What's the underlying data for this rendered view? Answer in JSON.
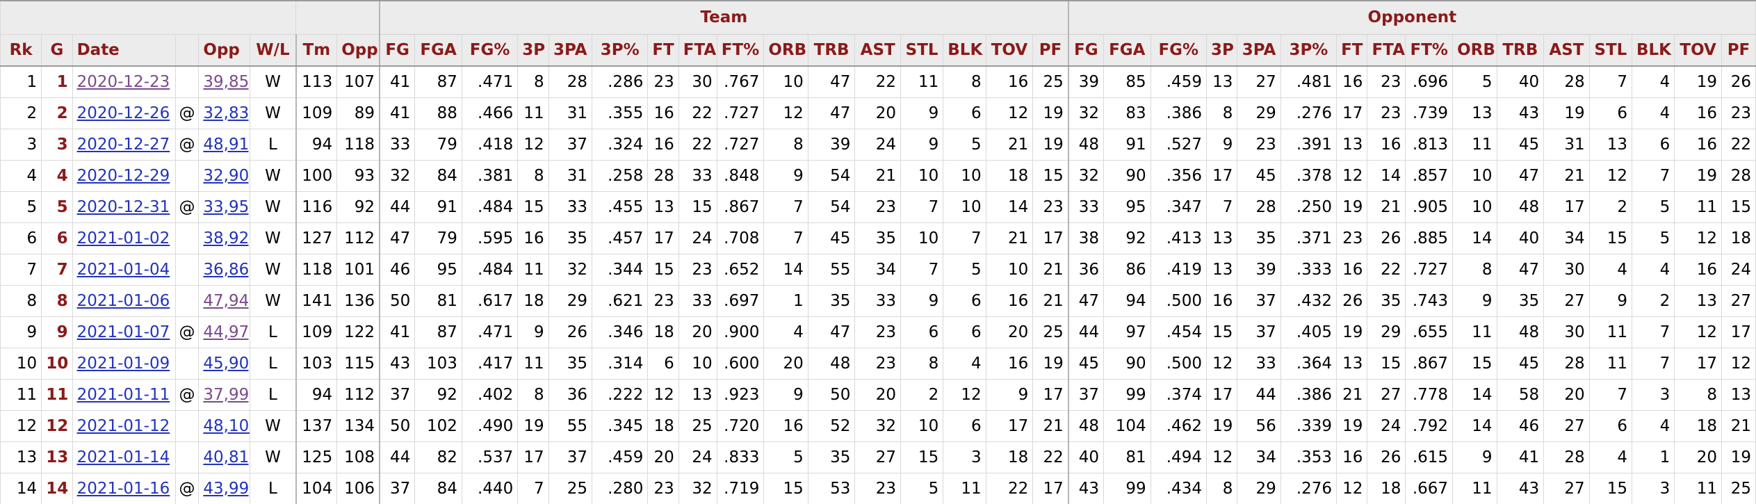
{
  "overheader": {
    "team": "Team",
    "opponent": "Opponent"
  },
  "columns": {
    "rk": "Rk",
    "g": "G",
    "date": "Date",
    "site": "",
    "opp": "Opp",
    "wl": "W/L",
    "tm": "Tm",
    "opp_pts": "Opp",
    "team_stats": [
      "FG",
      "FGA",
      "FG%",
      "3P",
      "3PA",
      "3P%",
      "FT",
      "FTA",
      "FT%",
      "ORB",
      "TRB",
      "AST",
      "STL",
      "BLK",
      "TOV",
      "PF"
    ],
    "opp_stats": [
      "FG",
      "FGA",
      "FG%",
      "3P",
      "3PA",
      "3P%",
      "FT",
      "FTA",
      "FT%",
      "ORB",
      "TRB",
      "AST",
      "STL",
      "BLK",
      "TOV",
      "PF"
    ]
  },
  "colors": {
    "header_text": "#8b1a1a",
    "link": "#2233bb",
    "link_visited": "#7a4a8c",
    "header_bg": "#ececec"
  },
  "rows": [
    {
      "rk": "1",
      "g": "1",
      "date": "2020-12-23",
      "date_visited": true,
      "site": "",
      "opp": [
        "39",
        "85",
        ".459",
        "13",
        "27",
        ".481",
        "16",
        "23",
        ".696",
        "5",
        "40",
        "28",
        "7",
        "4",
        "19",
        "26"
      ],
      "opp_visited": true,
      "wl": "W",
      "tm": "113",
      "opp_pts": "107",
      "team": [
        "41",
        "87",
        ".471",
        "8",
        "28",
        ".286",
        "23",
        "30",
        ".767",
        "10",
        "47",
        "22",
        "11",
        "8",
        "16",
        "25"
      ]
    },
    {
      "rk": "2",
      "g": "2",
      "date": "2020-12-26",
      "date_visited": false,
      "site": "@",
      "opp": [
        "32",
        "83",
        ".386",
        "8",
        "29",
        ".276",
        "17",
        "23",
        ".739",
        "13",
        "43",
        "19",
        "6",
        "4",
        "16",
        "23"
      ],
      "opp_visited": false,
      "wl": "W",
      "tm": "109",
      "opp_pts": "89",
      "team": [
        "41",
        "88",
        ".466",
        "11",
        "31",
        ".355",
        "16",
        "22",
        ".727",
        "12",
        "47",
        "20",
        "9",
        "6",
        "12",
        "19"
      ]
    },
    {
      "rk": "3",
      "g": "3",
      "date": "2020-12-27",
      "date_visited": false,
      "site": "@",
      "opp": [
        "48",
        "91",
        ".527",
        "9",
        "23",
        ".391",
        "13",
        "16",
        ".813",
        "11",
        "45",
        "31",
        "13",
        "6",
        "16",
        "22"
      ],
      "opp_visited": false,
      "wl": "L",
      "tm": "94",
      "opp_pts": "118",
      "team": [
        "33",
        "79",
        ".418",
        "12",
        "37",
        ".324",
        "16",
        "22",
        ".727",
        "8",
        "39",
        "24",
        "9",
        "5",
        "21",
        "19"
      ]
    },
    {
      "rk": "4",
      "g": "4",
      "date": "2020-12-29",
      "date_visited": false,
      "site": "",
      "opp": [
        "32",
        "90",
        ".356",
        "17",
        "45",
        ".378",
        "12",
        "14",
        ".857",
        "10",
        "47",
        "21",
        "12",
        "7",
        "19",
        "28"
      ],
      "opp_visited": false,
      "wl": "W",
      "tm": "100",
      "opp_pts": "93",
      "team": [
        "32",
        "84",
        ".381",
        "8",
        "31",
        ".258",
        "28",
        "33",
        ".848",
        "9",
        "54",
        "21",
        "10",
        "10",
        "18",
        "15"
      ]
    },
    {
      "rk": "5",
      "g": "5",
      "date": "2020-12-31",
      "date_visited": false,
      "site": "@",
      "opp": [
        "33",
        "95",
        ".347",
        "7",
        "28",
        ".250",
        "19",
        "21",
        ".905",
        "10",
        "48",
        "17",
        "2",
        "5",
        "11",
        "15"
      ],
      "opp_visited": false,
      "wl": "W",
      "tm": "116",
      "opp_pts": "92",
      "team": [
        "44",
        "91",
        ".484",
        "15",
        "33",
        ".455",
        "13",
        "15",
        ".867",
        "7",
        "54",
        "23",
        "7",
        "10",
        "14",
        "23"
      ]
    },
    {
      "rk": "6",
      "g": "6",
      "date": "2021-01-02",
      "date_visited": false,
      "site": "",
      "opp": [
        "38",
        "92",
        ".413",
        "13",
        "35",
        ".371",
        "23",
        "26",
        ".885",
        "14",
        "40",
        "34",
        "15",
        "5",
        "12",
        "18"
      ],
      "opp_visited": false,
      "wl": "W",
      "tm": "127",
      "opp_pts": "112",
      "team": [
        "47",
        "79",
        ".595",
        "16",
        "35",
        ".457",
        "17",
        "24",
        ".708",
        "7",
        "45",
        "35",
        "10",
        "7",
        "21",
        "17"
      ]
    },
    {
      "rk": "7",
      "g": "7",
      "date": "2021-01-04",
      "date_visited": false,
      "site": "",
      "opp": [
        "36",
        "86",
        ".419",
        "13",
        "39",
        ".333",
        "16",
        "22",
        ".727",
        "8",
        "47",
        "30",
        "4",
        "4",
        "16",
        "24"
      ],
      "opp_visited": false,
      "wl": "W",
      "tm": "118",
      "opp_pts": "101",
      "team": [
        "46",
        "95",
        ".484",
        "11",
        "32",
        ".344",
        "15",
        "23",
        ".652",
        "14",
        "55",
        "34",
        "7",
        "5",
        "10",
        "21"
      ]
    },
    {
      "rk": "8",
      "g": "8",
      "date": "2021-01-06",
      "date_visited": false,
      "site": "",
      "opp": [
        "47",
        "94",
        ".500",
        "16",
        "37",
        ".432",
        "26",
        "35",
        ".743",
        "9",
        "35",
        "27",
        "9",
        "2",
        "13",
        "27"
      ],
      "opp_visited": true,
      "wl": "W",
      "tm": "141",
      "opp_pts": "136",
      "team": [
        "50",
        "81",
        ".617",
        "18",
        "29",
        ".621",
        "23",
        "33",
        ".697",
        "1",
        "35",
        "33",
        "9",
        "6",
        "16",
        "21"
      ]
    },
    {
      "rk": "9",
      "g": "9",
      "date": "2021-01-07",
      "date_visited": false,
      "site": "@",
      "opp": [
        "44",
        "97",
        ".454",
        "15",
        "37",
        ".405",
        "19",
        "29",
        ".655",
        "11",
        "48",
        "30",
        "11",
        "7",
        "12",
        "17"
      ],
      "opp_visited": true,
      "wl": "L",
      "tm": "109",
      "opp_pts": "122",
      "team": [
        "41",
        "87",
        ".471",
        "9",
        "26",
        ".346",
        "18",
        "20",
        ".900",
        "4",
        "47",
        "23",
        "6",
        "6",
        "20",
        "25"
      ]
    },
    {
      "rk": "10",
      "g": "10",
      "date": "2021-01-09",
      "date_visited": false,
      "site": "",
      "opp": [
        "45",
        "90",
        ".500",
        "12",
        "33",
        ".364",
        "13",
        "15",
        ".867",
        "15",
        "45",
        "28",
        "11",
        "7",
        "17",
        "12"
      ],
      "opp_visited": false,
      "wl": "L",
      "tm": "103",
      "opp_pts": "115",
      "team": [
        "43",
        "103",
        ".417",
        "11",
        "35",
        ".314",
        "6",
        "10",
        ".600",
        "20",
        "48",
        "23",
        "8",
        "4",
        "16",
        "19"
      ]
    },
    {
      "rk": "11",
      "g": "11",
      "date": "2021-01-11",
      "date_visited": false,
      "site": "@",
      "opp": [
        "37",
        "99",
        ".374",
        "17",
        "44",
        ".386",
        "21",
        "27",
        ".778",
        "14",
        "58",
        "20",
        "7",
        "3",
        "8",
        "13"
      ],
      "opp_visited": true,
      "wl": "L",
      "tm": "94",
      "opp_pts": "112",
      "team": [
        "37",
        "92",
        ".402",
        "8",
        "36",
        ".222",
        "12",
        "13",
        ".923",
        "9",
        "50",
        "20",
        "2",
        "12",
        "9",
        "17"
      ]
    },
    {
      "rk": "12",
      "g": "12",
      "date": "2021-01-12",
      "date_visited": false,
      "site": "",
      "opp": [
        "48",
        "104",
        ".462",
        "19",
        "56",
        ".339",
        "19",
        "24",
        ".792",
        "14",
        "46",
        "27",
        "6",
        "4",
        "18",
        "21"
      ],
      "opp_visited": false,
      "wl": "W",
      "tm": "137",
      "opp_pts": "134",
      "team": [
        "50",
        "102",
        ".490",
        "19",
        "55",
        ".345",
        "18",
        "25",
        ".720",
        "16",
        "52",
        "32",
        "10",
        "6",
        "17",
        "21"
      ]
    },
    {
      "rk": "13",
      "g": "13",
      "date": "2021-01-14",
      "date_visited": false,
      "site": "",
      "opp": [
        "40",
        "81",
        ".494",
        "12",
        "34",
        ".353",
        "16",
        "26",
        ".615",
        "9",
        "41",
        "28",
        "4",
        "1",
        "20",
        "19"
      ],
      "opp_visited": false,
      "wl": "W",
      "tm": "125",
      "opp_pts": "108",
      "team": [
        "44",
        "82",
        ".537",
        "17",
        "37",
        ".459",
        "20",
        "24",
        ".833",
        "5",
        "35",
        "27",
        "15",
        "3",
        "18",
        "22"
      ]
    },
    {
      "rk": "14",
      "g": "14",
      "date": "2021-01-16",
      "date_visited": false,
      "site": "@",
      "opp": [
        "43",
        "99",
        ".434",
        "8",
        "29",
        ".276",
        "12",
        "18",
        ".667",
        "11",
        "43",
        "27",
        "15",
        "3",
        "11",
        "25"
      ],
      "opp_visited": false,
      "wl": "L",
      "tm": "104",
      "opp_pts": "106",
      "team": [
        "37",
        "84",
        ".440",
        "7",
        "25",
        ".280",
        "23",
        "32",
        ".719",
        "15",
        "53",
        "23",
        "5",
        "11",
        "22",
        "17"
      ]
    }
  ]
}
